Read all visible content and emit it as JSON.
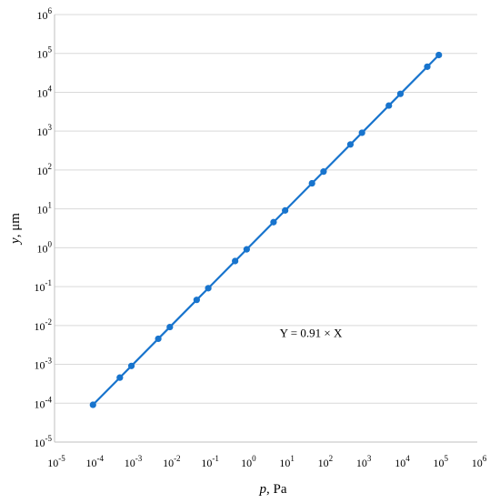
{
  "chart_data": {
    "type": "line",
    "xscale": "log",
    "yscale": "log",
    "xlabel": {
      "var": "p",
      "unit": ", Pa"
    },
    "ylabel": {
      "var": "y",
      "unit": ", μm"
    },
    "xlim": [
      1e-05,
      1000000.0
    ],
    "ylim": [
      1e-05,
      1000000.0
    ],
    "x_ticks": [
      {
        "base": "10",
        "exp": "-5"
      },
      {
        "base": "10",
        "exp": "-4"
      },
      {
        "base": "10",
        "exp": "-3"
      },
      {
        "base": "10",
        "exp": "-2"
      },
      {
        "base": "10",
        "exp": "-1"
      },
      {
        "base": "10",
        "exp": "0"
      },
      {
        "base": "10",
        "exp": "1"
      },
      {
        "base": "10",
        "exp": "2"
      },
      {
        "base": "10",
        "exp": "3"
      },
      {
        "base": "10",
        "exp": "4"
      },
      {
        "base": "10",
        "exp": "5"
      },
      {
        "base": "10",
        "exp": "6"
      }
    ],
    "y_ticks": [
      {
        "base": "10",
        "exp": "-5"
      },
      {
        "base": "10",
        "exp": "-4"
      },
      {
        "base": "10",
        "exp": "-3"
      },
      {
        "base": "10",
        "exp": "-2"
      },
      {
        "base": "10",
        "exp": "-1"
      },
      {
        "base": "10",
        "exp": "0"
      },
      {
        "base": "10",
        "exp": "1"
      },
      {
        "base": "10",
        "exp": "2"
      },
      {
        "base": "10",
        "exp": "3"
      },
      {
        "base": "10",
        "exp": "4"
      },
      {
        "base": "10",
        "exp": "5"
      },
      {
        "base": "10",
        "exp": "6"
      }
    ],
    "grid": "horizontal",
    "series": [
      {
        "x": [
          0.0001,
          0.0005,
          0.001,
          0.005,
          0.01,
          0.05,
          0.1,
          0.5,
          1,
          5,
          10,
          50,
          100,
          500,
          1000,
          5000,
          10000,
          50000,
          100000
        ],
        "y": [
          9.1e-05,
          0.000455,
          0.00091,
          0.00455,
          0.0091,
          0.0455,
          0.091,
          0.455,
          0.91,
          4.55,
          9.1,
          45.5,
          91,
          455,
          910,
          4550,
          9100,
          45500,
          91000
        ],
        "color": "#1874CD"
      }
    ],
    "annotation": {
      "text": "Y = 0.91 × X",
      "x": 10,
      "y": 0.005
    }
  }
}
